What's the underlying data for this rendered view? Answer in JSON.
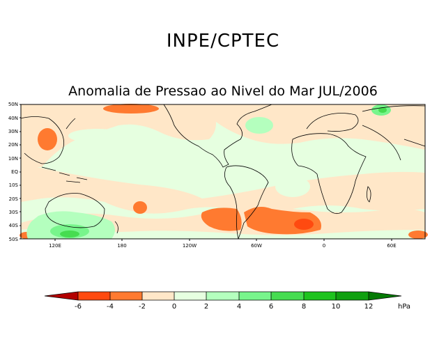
{
  "header": {
    "agency": "INPE/CPTEC"
  },
  "map": {
    "title": "Anomalia de Pressao ao Nivel do Mar JUL/2006",
    "lat_labels": [
      "50N",
      "40N",
      "30N",
      "20N",
      "10N",
      "EQ",
      "10S",
      "20S",
      "30S",
      "40S",
      "50S"
    ],
    "lon_labels": [
      "120E",
      "180",
      "120W",
      "60W",
      "0",
      "60E"
    ],
    "lat_range": [
      -50,
      50
    ],
    "lon_range": [
      90,
      450
    ]
  },
  "colorbar": {
    "levels": [
      "-6",
      "-4",
      "-2",
      "0",
      "2",
      "4",
      "6",
      "8",
      "10",
      "12"
    ],
    "unit": "hPa",
    "colors": [
      "#b30000",
      "#ff4a10",
      "#ff7a30",
      "#ffa060",
      "#ffe7c8",
      "#e6ffe0",
      "#b4ffbe",
      "#78f58c",
      "#46dc50",
      "#1ec31e",
      "#10a010",
      "#047a04"
    ]
  }
}
